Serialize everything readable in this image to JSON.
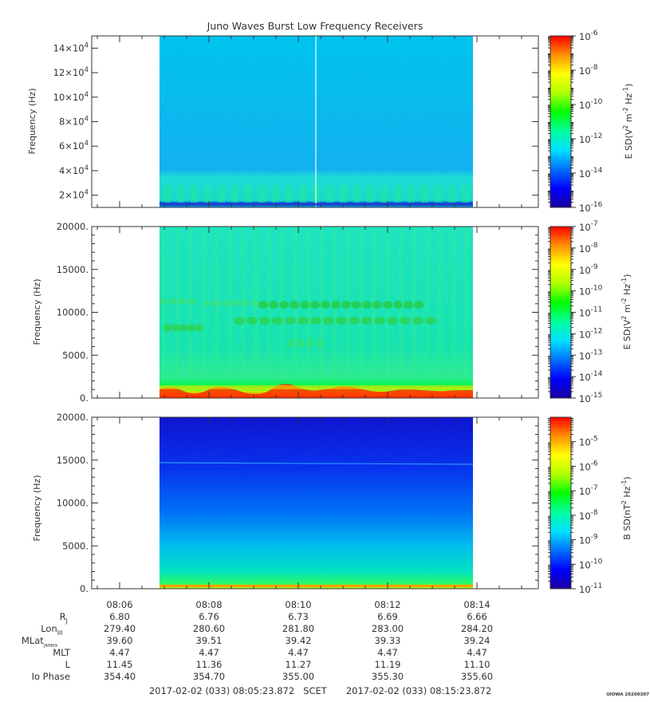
{
  "title": "Juno Waves Burst Low Frequency Receivers",
  "colors": {
    "colormap": [
      "#1a00a0",
      "#0000ff",
      "#0070ff",
      "#00e0ff",
      "#00ffa0",
      "#00ff00",
      "#b0ff00",
      "#ffff00",
      "#ff9000",
      "#ff0000"
    ],
    "frame": "#333333"
  },
  "chart_data": [
    {
      "type": "heatmap",
      "ylabel": "Frequency (Hz)",
      "ylim": [
        10000,
        150000
      ],
      "yticks": [
        {
          "value": 20000,
          "mant": "2",
          "exp": "4"
        },
        {
          "value": 40000,
          "mant": "4",
          "exp": "4"
        },
        {
          "value": 60000,
          "mant": "6",
          "exp": "4"
        },
        {
          "value": 80000,
          "mant": "8",
          "exp": "4"
        },
        {
          "value": 100000,
          "mant": "10",
          "exp": "4"
        },
        {
          "value": 120000,
          "mant": "12",
          "exp": "4"
        },
        {
          "value": 140000,
          "mant": "14",
          "exp": "4"
        }
      ],
      "colorbar": {
        "label": "E SD (V² m⁻² Hz⁻¹)",
        "log_range": [
          -16,
          -6
        ],
        "ticks": [
          {
            "value": -6,
            "label": "-6"
          },
          {
            "value": -8,
            "label": "-8"
          },
          {
            "value": -10,
            "label": "-10"
          },
          {
            "value": -12,
            "label": "-12"
          },
          {
            "value": -14,
            "label": "-14"
          },
          {
            "value": -16,
            "label": "-16"
          }
        ]
      }
    },
    {
      "type": "heatmap",
      "ylabel": "Frequency (Hz)",
      "ylim": [
        0,
        20000
      ],
      "yticks": [
        {
          "value": 0,
          "label": "0."
        },
        {
          "value": 5000,
          "label": "5000."
        },
        {
          "value": 10000,
          "label": "10000."
        },
        {
          "value": 15000,
          "label": "15000."
        },
        {
          "value": 20000,
          "label": "20000."
        }
      ],
      "colorbar": {
        "label": "E SD (V² m⁻² Hz⁻¹)",
        "log_range": [
          -15,
          -7
        ],
        "ticks": [
          {
            "value": -7,
            "label": "-7"
          },
          {
            "value": -8,
            "label": "-8"
          },
          {
            "value": -9,
            "label": "-9"
          },
          {
            "value": -10,
            "label": "-10"
          },
          {
            "value": -11,
            "label": "-11"
          },
          {
            "value": -12,
            "label": "-12"
          },
          {
            "value": -13,
            "label": "-13"
          },
          {
            "value": -14,
            "label": "-14"
          },
          {
            "value": -15,
            "label": "-15"
          }
        ]
      }
    },
    {
      "type": "heatmap",
      "ylabel": "Frequency (Hz)",
      "ylim": [
        0,
        20000
      ],
      "yticks": [
        {
          "value": 0,
          "label": "0."
        },
        {
          "value": 5000,
          "label": "5000."
        },
        {
          "value": 10000,
          "label": "10000."
        },
        {
          "value": 15000,
          "label": "15000."
        },
        {
          "value": 20000,
          "label": "20000."
        }
      ],
      "colorbar": {
        "label": "B SD (nT² Hz⁻¹)",
        "log_range": [
          -11,
          -4
        ],
        "ticks": [
          {
            "value": -5,
            "label": "-5"
          },
          {
            "value": -6,
            "label": "-6"
          },
          {
            "value": -7,
            "label": "-7"
          },
          {
            "value": -8,
            "label": "-8"
          },
          {
            "value": -9,
            "label": "-9"
          },
          {
            "value": -10,
            "label": "-10"
          },
          {
            "value": -11,
            "label": "-11"
          }
        ]
      }
    }
  ],
  "time_axis": {
    "ticks": [
      "08:06",
      "08:08",
      "08:10",
      "08:12",
      "08:14"
    ]
  },
  "ephemeris": {
    "rows": [
      {
        "label": "Rj",
        "main": "R",
        "sub": "J",
        "values": [
          "6.80",
          "6.76",
          "6.73",
          "6.69",
          "6.66"
        ]
      },
      {
        "label": "LonIII",
        "main": "Lon",
        "sub": "III",
        "values": [
          "279.40",
          "280.60",
          "281.80",
          "283.00",
          "284.20"
        ]
      },
      {
        "label": "MLatJRM09",
        "main": "MLat",
        "sub": "JRM09",
        "values": [
          "39.60",
          "39.51",
          "39.42",
          "39.33",
          "39.24"
        ]
      },
      {
        "label": "MLT",
        "main": "MLT",
        "sub": "",
        "values": [
          "4.47",
          "4.47",
          "4.47",
          "4.47",
          "4.47"
        ]
      },
      {
        "label": "L",
        "main": "L",
        "sub": "",
        "values": [
          "11.45",
          "11.36",
          "11.27",
          "11.19",
          "11.10"
        ]
      },
      {
        "label": "Io Phase",
        "main": "Io Phase",
        "sub": "",
        "values": [
          "354.40",
          "354.70",
          "355.00",
          "355.30",
          "355.60"
        ]
      }
    ]
  },
  "scet": {
    "start": "2017-02-02 (033) 08:05:23.872",
    "label": "SCET",
    "end": "2017-02-02 (033) 08:15:23.872"
  },
  "credit": "UIOWA 20200307"
}
